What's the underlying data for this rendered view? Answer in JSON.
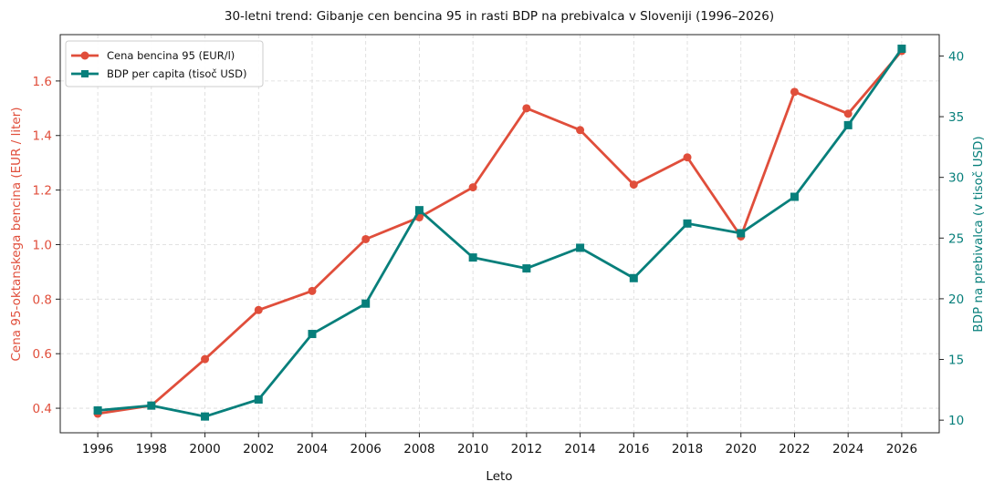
{
  "chart_data": {
    "type": "line",
    "title": "30-letni trend: Gibanje cen bencina 95 in rasti BDP na prebivalca v Sloveniji (1996–2026)",
    "xlabel": "Leto",
    "ylabel_left": "Cena 95-oktanskega bencina (EUR / liter)",
    "ylabel_right": "BDP na prebivalca (v tisoč USD)",
    "x": [
      1996,
      1998,
      2000,
      2002,
      2004,
      2006,
      2008,
      2010,
      2012,
      2014,
      2016,
      2018,
      2020,
      2022,
      2024,
      2026
    ],
    "x_ticks": [
      "1996",
      "1998",
      "2000",
      "2002",
      "2004",
      "2006",
      "2008",
      "2010",
      "2012",
      "2014",
      "2016",
      "2018",
      "2020",
      "2022",
      "2024",
      "2026"
    ],
    "xlim": [
      1994.6,
      2027.4
    ],
    "y_left_lim": [
      0.31,
      1.77
    ],
    "y_left_ticks": [
      "0.4",
      "0.6",
      "0.8",
      "1.0",
      "1.2",
      "1.4",
      "1.6"
    ],
    "y_right_lim": [
      8.96,
      41.76
    ],
    "y_right_ticks": [
      "10",
      "15",
      "20",
      "25",
      "30",
      "35",
      "40"
    ],
    "grid": true,
    "legend_position": "top-left",
    "series": [
      {
        "name": "Cena bencina 95 (EUR/l)",
        "axis": "left",
        "color": "#e04e3b",
        "marker": "circle",
        "values": [
          0.38,
          0.41,
          0.58,
          0.76,
          0.83,
          1.02,
          1.1,
          1.21,
          1.5,
          1.42,
          1.22,
          1.32,
          1.03,
          1.56,
          1.48,
          1.71
        ]
      },
      {
        "name": "BDP per capita (tisoč USD)",
        "axis": "right",
        "color": "#077f7b",
        "marker": "square",
        "values": [
          10.8,
          11.2,
          10.3,
          11.7,
          17.1,
          19.6,
          27.3,
          23.4,
          22.5,
          24.2,
          21.7,
          26.2,
          25.4,
          28.4,
          34.3,
          40.6
        ]
      }
    ]
  }
}
